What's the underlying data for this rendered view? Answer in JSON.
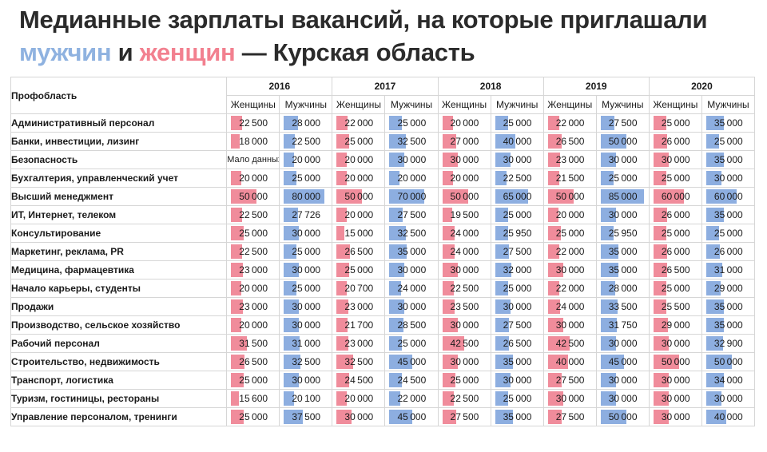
{
  "title": {
    "line1": "Медианные зарплаты вакансий, на которые приглашали",
    "men_word": "мужчин",
    "and_word": " и ",
    "women_word": "женщин",
    "suffix": " — Курская область"
  },
  "colors": {
    "women": "#f08c9b",
    "men": "#8daee0"
  },
  "chart_data": {
    "type": "table",
    "corner_label": "Профобласть",
    "sub_labels": {
      "women": "Женщины",
      "men": "Мужчины"
    },
    "max_value": 85000,
    "years": [
      "2016",
      "2017",
      "2018",
      "2019",
      "2020"
    ],
    "rows": [
      {
        "category": "Административный персонал",
        "values": [
          [
            22500,
            28000
          ],
          [
            22000,
            25000
          ],
          [
            20000,
            25000
          ],
          [
            22000,
            27500
          ],
          [
            25000,
            35000
          ]
        ]
      },
      {
        "category": "Банки, инвестиции, лизинг",
        "values": [
          [
            18000,
            22500
          ],
          [
            25000,
            32500
          ],
          [
            27000,
            40000
          ],
          [
            26500,
            50000
          ],
          [
            26000,
            25000
          ]
        ]
      },
      {
        "category": "Безопасность",
        "values": [
          [
            "Мало данных",
            20000
          ],
          [
            20000,
            30000
          ],
          [
            30000,
            30000
          ],
          [
            23000,
            30000
          ],
          [
            30000,
            35000
          ]
        ]
      },
      {
        "category": "Бухгалтерия, управленческий учет",
        "values": [
          [
            20000,
            25000
          ],
          [
            20000,
            20000
          ],
          [
            20000,
            22500
          ],
          [
            21500,
            25000
          ],
          [
            25000,
            30000
          ]
        ]
      },
      {
        "category": "Высший менеджмент",
        "values": [
          [
            50000,
            80000
          ],
          [
            50000,
            70000
          ],
          [
            50000,
            65000
          ],
          [
            50000,
            85000
          ],
          [
            60000,
            60000
          ]
        ]
      },
      {
        "category": "ИТ, Интернет, телеком",
        "values": [
          [
            22500,
            27726
          ],
          [
            20000,
            27500
          ],
          [
            19500,
            25000
          ],
          [
            20000,
            30000
          ],
          [
            26000,
            35000
          ]
        ]
      },
      {
        "category": "Консультирование",
        "values": [
          [
            25000,
            30000
          ],
          [
            15000,
            32500
          ],
          [
            24000,
            25950
          ],
          [
            25000,
            25950
          ],
          [
            25000,
            25000
          ]
        ]
      },
      {
        "category": "Маркетинг, реклама, PR",
        "values": [
          [
            22500,
            25000
          ],
          [
            26500,
            35000
          ],
          [
            24000,
            27500
          ],
          [
            22000,
            35000
          ],
          [
            26000,
            26000
          ]
        ]
      },
      {
        "category": "Медицина, фармацевтика",
        "values": [
          [
            23000,
            30000
          ],
          [
            25000,
            30000
          ],
          [
            30000,
            32000
          ],
          [
            30000,
            35000
          ],
          [
            26500,
            31000
          ]
        ]
      },
      {
        "category": "Начало карьеры, студенты",
        "values": [
          [
            20000,
            25000
          ],
          [
            20700,
            24000
          ],
          [
            22500,
            25000
          ],
          [
            22000,
            28000
          ],
          [
            25000,
            29000
          ]
        ]
      },
      {
        "category": "Продажи",
        "values": [
          [
            23000,
            30000
          ],
          [
            23000,
            30000
          ],
          [
            23500,
            30000
          ],
          [
            24000,
            33500
          ],
          [
            25500,
            35000
          ]
        ]
      },
      {
        "category": "Производство, сельское хозяйство",
        "values": [
          [
            20000,
            30000
          ],
          [
            21700,
            28500
          ],
          [
            30000,
            27500
          ],
          [
            30000,
            31750
          ],
          [
            29000,
            35000
          ]
        ]
      },
      {
        "category": "Рабочий персонал",
        "values": [
          [
            31500,
            31000
          ],
          [
            23000,
            25000
          ],
          [
            42500,
            26500
          ],
          [
            42500,
            30000
          ],
          [
            30000,
            32900
          ]
        ]
      },
      {
        "category": "Строительство, недвижимость",
        "values": [
          [
            26500,
            32500
          ],
          [
            32500,
            45000
          ],
          [
            30000,
            35000
          ],
          [
            40000,
            45000
          ],
          [
            50000,
            50000
          ]
        ]
      },
      {
        "category": "Транспорт, логистика",
        "values": [
          [
            25000,
            30000
          ],
          [
            24500,
            24500
          ],
          [
            25000,
            30000
          ],
          [
            27500,
            30000
          ],
          [
            30000,
            34000
          ]
        ]
      },
      {
        "category": "Туризм, гостиницы, рестораны",
        "values": [
          [
            15600,
            20100
          ],
          [
            20000,
            22000
          ],
          [
            22500,
            25000
          ],
          [
            30000,
            30000
          ],
          [
            30000,
            30000
          ]
        ]
      },
      {
        "category": "Управление персоналом, тренинги",
        "values": [
          [
            25000,
            37500
          ],
          [
            30000,
            45000
          ],
          [
            27500,
            35000
          ],
          [
            27500,
            50000
          ],
          [
            30000,
            40000
          ]
        ]
      }
    ]
  }
}
